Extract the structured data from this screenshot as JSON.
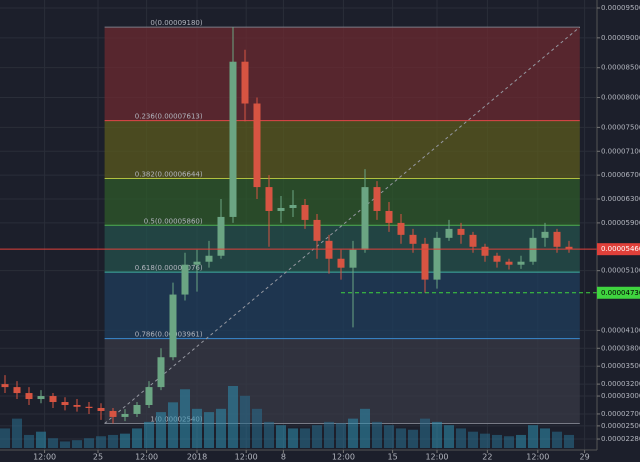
{
  "chart_data": {
    "type": "candlestick",
    "x": [
      0,
      1,
      2,
      3,
      4,
      5,
      6,
      7,
      8,
      9,
      10,
      11,
      12,
      13,
      14,
      15,
      16,
      17,
      18,
      19,
      20,
      21,
      22,
      23,
      24,
      25,
      26,
      27,
      28,
      29,
      30,
      31,
      32,
      33,
      34,
      35,
      36,
      37,
      38,
      39,
      40,
      41,
      42,
      43,
      44,
      45,
      46,
      47
    ],
    "open": [
      3.2e-05,
      3.15e-05,
      3.05e-05,
      2.95e-05,
      3e-05,
      2.9e-05,
      2.85e-05,
      2.82e-05,
      2.8e-05,
      2.75e-05,
      2.65e-05,
      2.7e-05,
      2.85e-05,
      3.15e-05,
      3.65e-05,
      4.7e-05,
      5.2e-05,
      5.25e-05,
      5.35e-05,
      6e-05,
      8.6e-05,
      7.9e-05,
      6.5e-05,
      6.1e-05,
      6.15e-05,
      6.2e-05,
      5.95e-05,
      5.6e-05,
      5.3e-05,
      5.15e-05,
      5.45e-05,
      6.5e-05,
      6.1e-05,
      5.9e-05,
      5.7e-05,
      5.55e-05,
      4.95e-05,
      5.65e-05,
      5.8e-05,
      5.7e-05,
      5.5e-05,
      5.35e-05,
      5.25e-05,
      5.2e-05,
      5.25e-05,
      5.65e-05,
      5.75e-05,
      5.5e-05
    ],
    "high": [
      3.35e-05,
      3.25e-05,
      3.15e-05,
      3.1e-05,
      3.05e-05,
      2.98e-05,
      2.95e-05,
      2.9e-05,
      2.88e-05,
      2.8e-05,
      2.78e-05,
      2.9e-05,
      3.25e-05,
      3.8e-05,
      4.9e-05,
      5.4e-05,
      5.45e-05,
      5.6e-05,
      6.3e-05,
      9.18e-05,
      8.8e-05,
      8e-05,
      6.7e-05,
      6.35e-05,
      6.45e-05,
      6.3e-05,
      6.05e-05,
      5.7e-05,
      5.45e-05,
      5.6e-05,
      6.8e-05,
      6.6e-05,
      6.25e-05,
      6.05e-05,
      5.8e-05,
      5.65e-05,
      5.75e-05,
      5.95e-05,
      5.9e-05,
      5.75e-05,
      5.55e-05,
      5.4e-05,
      5.3e-05,
      5.35e-05,
      5.8e-05,
      5.9e-05,
      5.8e-05,
      5.6e-05
    ],
    "low": [
      3.05e-05,
      2.95e-05,
      2.85e-05,
      2.88e-05,
      2.8e-05,
      2.76e-05,
      2.74e-05,
      2.7e-05,
      2.6e-05,
      2.54e-05,
      2.58e-05,
      2.65e-05,
      2.8e-05,
      3.1e-05,
      3.6e-05,
      4.6e-05,
      4.75e-05,
      5.15e-05,
      5.3e-05,
      5.9e-05,
      7.6e-05,
      6.3e-05,
      5.5e-05,
      5.9e-05,
      6e-05,
      5.8e-05,
      5.3e-05,
      5.05e-05,
      4.95e-05,
      4.15e-05,
      5.4e-05,
      5.95e-05,
      5.75e-05,
      5.55e-05,
      5.4e-05,
      4.73e-05,
      4.8e-05,
      5.6e-05,
      5.55e-05,
      5.4e-05,
      5.25e-05,
      5.15e-05,
      5.12e-05,
      5.13e-05,
      5.2e-05,
      5.5e-05,
      5.4e-05,
      5.4e-05
    ],
    "close": [
      3.15e-05,
      3.05e-05,
      2.95e-05,
      3e-05,
      2.9e-05,
      2.85e-05,
      2.82e-05,
      2.8e-05,
      2.75e-05,
      2.65e-05,
      2.7e-05,
      2.85e-05,
      3.15e-05,
      3.65e-05,
      4.7e-05,
      5.2e-05,
      5.25e-05,
      5.35e-05,
      6e-05,
      8.6e-05,
      7.9e-05,
      6.5e-05,
      6.1e-05,
      6.15e-05,
      6.2e-05,
      5.95e-05,
      5.6e-05,
      5.3e-05,
      5.15e-05,
      5.45e-05,
      6.5e-05,
      6.1e-05,
      5.9e-05,
      5.7e-05,
      5.55e-05,
      4.95e-05,
      5.65e-05,
      5.8e-05,
      5.7e-05,
      5.5e-05,
      5.35e-05,
      5.25e-05,
      5.2e-05,
      5.25e-05,
      5.65e-05,
      5.75e-05,
      5.5e-05,
      5.46e-05
    ],
    "volume": [
      30,
      45,
      20,
      25,
      15,
      10,
      12,
      15,
      18,
      20,
      22,
      30,
      40,
      55,
      70,
      90,
      60,
      55,
      60,
      95,
      80,
      60,
      40,
      35,
      30,
      30,
      35,
      40,
      38,
      45,
      60,
      40,
      35,
      30,
      28,
      45,
      40,
      35,
      30,
      25,
      22,
      20,
      18,
      20,
      35,
      30,
      25,
      20
    ],
    "up_color": "#6ba583",
    "down_color": "#d75442",
    "xlim": [
      0,
      49
    ],
    "xticks": [
      {
        "value": 3.3,
        "label": "12:00"
      },
      {
        "value": 7.75,
        "label": "25"
      },
      {
        "value": 11.8,
        "label": "12:00"
      },
      {
        "value": 16,
        "label": "2018"
      },
      {
        "value": 20.1,
        "label": "12:00"
      },
      {
        "value": 23.2,
        "label": "8"
      },
      {
        "value": 28.2,
        "label": "12:00"
      },
      {
        "value": 32.3,
        "label": "15"
      },
      {
        "value": 36,
        "label": "12:00"
      },
      {
        "value": 40.2,
        "label": "22"
      },
      {
        "value": 44.4,
        "label": "12:00"
      },
      {
        "value": 48.3,
        "label": "29"
      }
    ],
    "ylim": [
      2.18e-05,
      9.55e-05
    ],
    "yticks": [
      {
        "value": 9.5e-05,
        "label": "0.00009500"
      },
      {
        "value": 9e-05,
        "label": "0.00009000"
      },
      {
        "value": 8.5e-05,
        "label": "0.00008500"
      },
      {
        "value": 8e-05,
        "label": "0.00008000"
      },
      {
        "value": 7.5e-05,
        "label": "0.00007500"
      },
      {
        "value": 7.1e-05,
        "label": "0.00007100"
      },
      {
        "value": 6.7e-05,
        "label": "0.00006700"
      },
      {
        "value": 6.3e-05,
        "label": "0.00006300"
      },
      {
        "value": 5.9e-05,
        "label": "0.00005900"
      },
      {
        "value": 5.1e-05,
        "label": "0.00005100"
      },
      {
        "value": 4.1e-05,
        "label": "0.00004100"
      },
      {
        "value": 3.8e-05,
        "label": "0.00003800"
      },
      {
        "value": 3.5e-05,
        "label": "0.00003500"
      },
      {
        "value": 3.2e-05,
        "label": "0.00003200"
      },
      {
        "value": 3e-05,
        "label": "0.00003000"
      },
      {
        "value": 2.7e-05,
        "label": "0.00002700"
      },
      {
        "value": 2.5e-05,
        "label": "0.00002500"
      },
      {
        "value": 2.28e-05,
        "label": "0.00002280"
      }
    ],
    "grid": true,
    "fib_x": [
      8.3,
      47.9
    ],
    "fib_levels": [
      {
        "value": 9.18e-05,
        "label": "0(0.00009180)",
        "color": "#787b86",
        "fill": "#6b2a30"
      },
      {
        "value": 7.613e-05,
        "label": "0.236(0.00007613)",
        "color": "#e04848",
        "fill": "#5a5a1e"
      },
      {
        "value": 6.644e-05,
        "label": "0.382(0.00006644)",
        "color": "#b0c040",
        "fill": "#2d5a2a"
      },
      {
        "value": 5.86e-05,
        "label": "0.5(0.00005860)",
        "color": "#50b050",
        "fill": "#24514c"
      },
      {
        "value": 5.076e-05,
        "label": "0.618(0.00005076)",
        "color": "#40b0a0",
        "fill": "#1f3e5c"
      },
      {
        "value": 3.961e-05,
        "label": "0.786(0.00003961)",
        "color": "#3a8ad0",
        "fill": "#373a45"
      },
      {
        "value": 2.54e-05,
        "label": "1(0.00002540)",
        "color": "#787b86"
      }
    ],
    "price_lines": [
      {
        "value": 5.46e-05,
        "label": "0.00005460",
        "color": "#e0403a",
        "dashed": false
      },
      {
        "value": 4.73e-05,
        "label": "0.00004730",
        "color": "#3fd43f",
        "dashed": true
      }
    ]
  }
}
